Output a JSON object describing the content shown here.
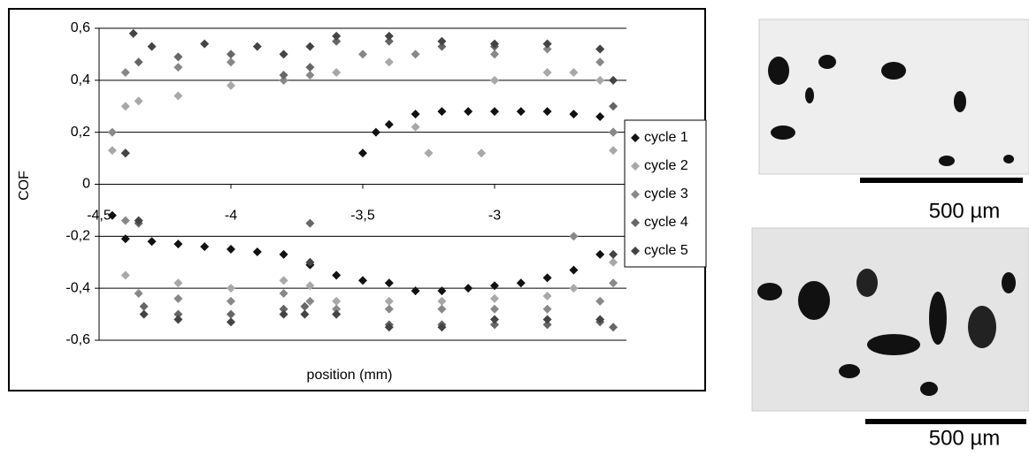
{
  "chart_data": {
    "type": "scatter",
    "x_label": "position (mm)",
    "y_label": "COF",
    "xlim": [
      -4.5,
      -2.5
    ],
    "ylim": [
      -0.6,
      0.6
    ],
    "xticks": [
      {
        "value": -4.5,
        "label": "-4,5"
      },
      -4,
      {
        "value": -3.5,
        "label": "-3,5"
      },
      -3
    ],
    "yticks": [
      {
        "value": 0.6,
        "label": "0,6"
      },
      {
        "value": 0.4,
        "label": "0,4"
      },
      {
        "value": 0.2,
        "label": "0,2"
      },
      0,
      {
        "value": -0.2,
        "label": "-0,2"
      },
      {
        "value": -0.4,
        "label": "-0,4"
      },
      {
        "value": -0.6,
        "label": "-0,6"
      }
    ],
    "grid": true,
    "legend": "right",
    "series": [
      {
        "name": "cycle 1",
        "color": "#111111",
        "x": [
          -3.5,
          -3.45,
          -3.4,
          -3.3,
          -3.2,
          -3.1,
          -3.0,
          -2.9,
          -2.8,
          -2.7,
          -2.6,
          -2.55,
          -4.45,
          -4.4,
          -4.3,
          -4.2,
          -4.1,
          -4.0,
          -3.9,
          -3.8,
          -3.7,
          -3.6,
          -3.5,
          -3.4,
          -3.3,
          -3.2,
          -3.1,
          -3.0,
          -2.9,
          -2.8,
          -2.7,
          -2.6
        ],
        "values": [
          0.12,
          0.2,
          0.23,
          0.27,
          0.28,
          0.28,
          0.28,
          0.28,
          0.28,
          0.27,
          0.26,
          0.2,
          -0.12,
          -0.21,
          -0.22,
          -0.23,
          -0.24,
          -0.25,
          -0.26,
          -0.27,
          -0.31,
          -0.35,
          -0.37,
          -0.38,
          -0.41,
          -0.41,
          -0.4,
          -0.39,
          -0.38,
          -0.36,
          -0.33,
          -0.27
        ]
      },
      {
        "name": "cycle 2",
        "color": "#a8a8a8",
        "x": [
          -4.45,
          -4.4,
          -4.35,
          -4.2,
          -4.0,
          -3.8,
          -3.6,
          -3.4,
          -3.3,
          -3.25,
          -3.05,
          -3.0,
          -2.8,
          -2.7,
          -2.6,
          -2.55,
          -4.4,
          -4.2,
          -4.0,
          -3.8,
          -3.7,
          -3.6,
          -3.4,
          -3.2,
          -3.0,
          -2.8,
          -2.7,
          -2.55
        ],
        "values": [
          0.13,
          0.3,
          0.32,
          0.34,
          0.38,
          0.4,
          0.43,
          0.47,
          0.22,
          0.12,
          0.12,
          0.4,
          0.43,
          0.43,
          0.4,
          0.13,
          -0.35,
          -0.38,
          -0.4,
          -0.37,
          -0.39,
          -0.45,
          -0.45,
          -0.45,
          -0.44,
          -0.43,
          -0.4,
          -0.3
        ]
      },
      {
        "name": "cycle 3",
        "color": "#888888",
        "x": [
          -4.45,
          -4.4,
          -4.2,
          -4.0,
          -3.8,
          -3.7,
          -3.5,
          -3.3,
          -3.0,
          -2.8,
          -2.6,
          -2.55,
          -4.4,
          -4.35,
          -4.2,
          -4.0,
          -3.8,
          -3.7,
          -3.6,
          -3.4,
          -3.2,
          -3.0,
          -2.8,
          -2.7,
          -2.6,
          -2.55
        ],
        "values": [
          0.2,
          0.43,
          0.45,
          0.47,
          0.4,
          0.42,
          0.5,
          0.5,
          0.5,
          0.52,
          0.47,
          0.2,
          -0.14,
          -0.42,
          -0.44,
          -0.45,
          -0.42,
          -0.45,
          -0.48,
          -0.48,
          -0.48,
          -0.48,
          -0.48,
          -0.2,
          -0.45,
          -0.38
        ]
      },
      {
        "name": "cycle 4",
        "color": "#666666",
        "x": [
          -4.4,
          -4.35,
          -4.2,
          -4.0,
          -3.8,
          -3.7,
          -3.6,
          -3.4,
          -3.2,
          -3.0,
          -2.8,
          -2.6,
          -2.55,
          -4.35,
          -4.33,
          -4.2,
          -4.0,
          -3.8,
          -3.72,
          -3.7,
          -3.6,
          -3.4,
          -3.2,
          -3.0,
          -2.8,
          -2.6,
          -2.55
        ],
        "values": [
          0.12,
          0.47,
          0.49,
          0.5,
          0.42,
          0.45,
          0.55,
          0.55,
          0.53,
          0.53,
          0.54,
          0.52,
          0.3,
          -0.15,
          -0.47,
          -0.5,
          -0.5,
          -0.48,
          -0.47,
          -0.15,
          -0.5,
          -0.54,
          -0.54,
          -0.54,
          -0.54,
          -0.53,
          -0.55
        ]
      },
      {
        "name": "cycle 5",
        "color": "#444444",
        "x": [
          -4.4,
          -4.37,
          -4.3,
          -4.1,
          -3.9,
          -3.8,
          -3.7,
          -3.6,
          -3.4,
          -3.2,
          -3.0,
          -2.8,
          -2.6,
          -2.55,
          -4.35,
          -4.33,
          -4.2,
          -4.0,
          -3.8,
          -3.72,
          -3.7,
          -3.6,
          -3.4,
          -3.2,
          -3.0,
          -2.8,
          -2.6,
          -2.55
        ],
        "values": [
          0.12,
          0.58,
          0.53,
          0.54,
          0.53,
          0.5,
          0.53,
          0.57,
          0.57,
          0.55,
          0.54,
          0.54,
          0.52,
          0.4,
          -0.14,
          -0.5,
          -0.52,
          -0.53,
          -0.5,
          -0.5,
          -0.3,
          -0.5,
          -0.55,
          -0.55,
          -0.52,
          -0.52,
          -0.52,
          -0.27
        ]
      }
    ]
  },
  "micrographs": [
    {
      "scale_bar": "500 µm"
    },
    {
      "scale_bar": "500 µm"
    }
  ]
}
